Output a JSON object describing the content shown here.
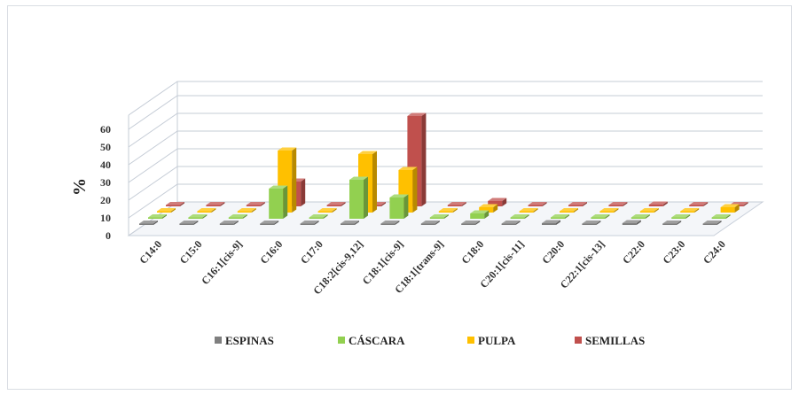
{
  "chart_data": {
    "type": "bar",
    "subtype": "3d-column",
    "ylabel": "%",
    "ylim": [
      0,
      60
    ],
    "yticks": [
      0,
      10,
      20,
      30,
      40,
      50,
      60
    ],
    "grid": true,
    "legend_position": "bottom",
    "categories": [
      "C14:0",
      "C15:0",
      "C16:1[cis-9]",
      "C16:0",
      "C17:0",
      "C18:2[cis-9,12]",
      "C18:1[cis-9]",
      "C18:1[trans-9]",
      "C18:0",
      "C20:1[cis-11]",
      "C20:0",
      "C22:1[cis-13]",
      "C22:0",
      "C23:0",
      "C24:0"
    ],
    "series": [
      {
        "name": "ESPINAS",
        "color": "#7f7f7f",
        "values": [
          0,
          0,
          0,
          0.5,
          0,
          0,
          0,
          0,
          0.5,
          0,
          1,
          0,
          1,
          0,
          0
        ]
      },
      {
        "name": "CÁSCARA",
        "color": "#92d050",
        "values": [
          0.5,
          0,
          0,
          17,
          0.5,
          22,
          12,
          0,
          3,
          0.5,
          0,
          0.5,
          0.5,
          0.5,
          0.5
        ]
      },
      {
        "name": "PULPA",
        "color": "#ffc000",
        "values": [
          0.5,
          0.5,
          0.5,
          35,
          0.5,
          33,
          24,
          0.5,
          3,
          0.5,
          0,
          0.5,
          0.5,
          0.5,
          3
        ]
      },
      {
        "name": "SEMILLAS",
        "color": "#c0504d",
        "values": [
          0.5,
          0,
          0.5,
          14,
          0.5,
          0.5,
          51,
          0,
          3,
          0.5,
          0.5,
          0.5,
          1,
          0.5,
          0.5
        ]
      }
    ]
  }
}
